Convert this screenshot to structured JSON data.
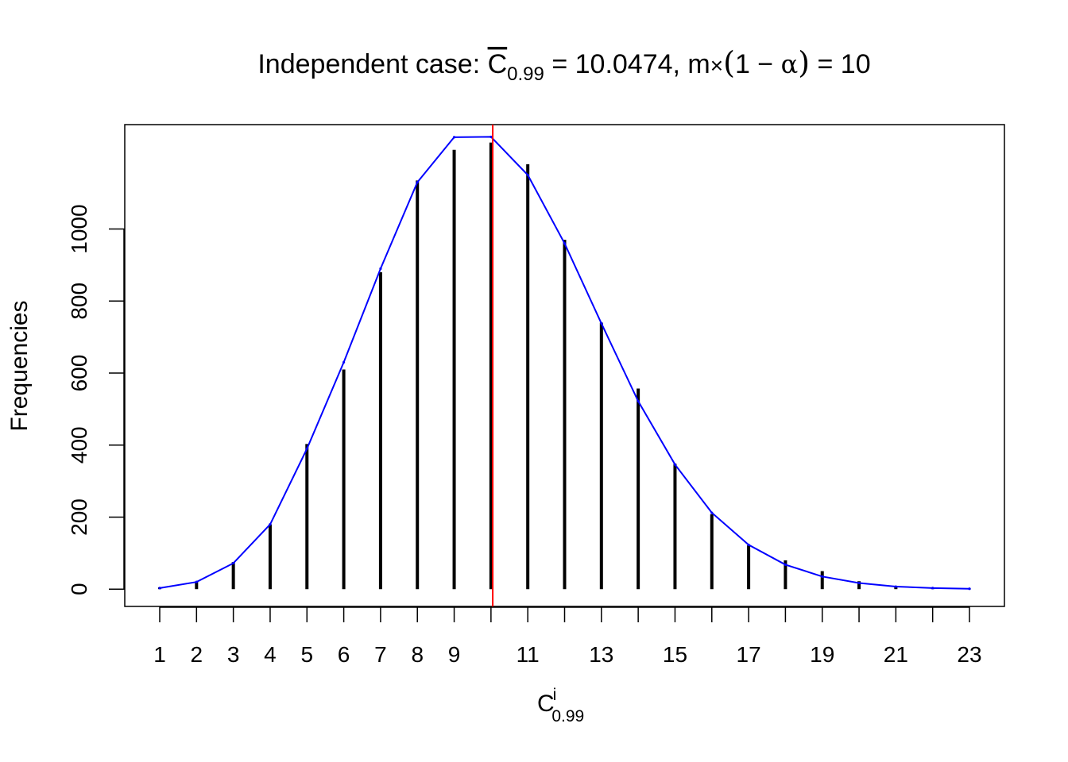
{
  "title": {
    "prefix": "Independent case: ",
    "cbar_letter": "C",
    "cbar_sub": "0.99",
    "eq1": " = 10.0474, m",
    "times": "×",
    "paren_open": "(",
    "one_minus": "1 − ",
    "alpha": "α",
    "paren_close": ")",
    "eq2": " = 10"
  },
  "ylabel": "Frequencies",
  "xlabel": {
    "letter": "C",
    "sup": "i",
    "sub": "0.99"
  },
  "chart_data": {
    "type": "bar",
    "x": [
      1,
      2,
      3,
      4,
      5,
      6,
      7,
      8,
      9,
      10,
      11,
      12,
      13,
      14,
      15,
      16,
      17,
      18,
      19,
      20,
      21,
      22,
      23
    ],
    "x_tick_labels": [
      "1",
      "2",
      "3",
      "4",
      "5",
      "6",
      "7",
      "8",
      "9",
      "11",
      "13",
      "15",
      "17",
      "19",
      "21",
      "23"
    ],
    "x_tick_label_positions": [
      1,
      2,
      3,
      4,
      5,
      6,
      7,
      8,
      9,
      11,
      13,
      15,
      17,
      19,
      21,
      23
    ],
    "y_ticks": [
      0,
      200,
      400,
      600,
      800,
      1000
    ],
    "xlim": [
      0.05,
      23.95
    ],
    "ylim": [
      -48,
      1290
    ],
    "series": [
      {
        "type": "bar",
        "color": "#000000",
        "values": [
          5,
          20,
          75,
          180,
          403,
          610,
          880,
          1135,
          1220,
          1240,
          1180,
          970,
          740,
          557,
          348,
          208,
          122,
          80,
          50,
          22,
          8,
          3,
          1
        ]
      },
      {
        "type": "line",
        "color": "#0000ff",
        "values": [
          3,
          20,
          72,
          180,
          390,
          630,
          890,
          1130,
          1255,
          1256,
          1150,
          960,
          738,
          522,
          346,
          212,
          123,
          68,
          35,
          17,
          7,
          3,
          1
        ]
      }
    ],
    "vline": {
      "x": 10.0474,
      "color": "#ff0000"
    }
  }
}
